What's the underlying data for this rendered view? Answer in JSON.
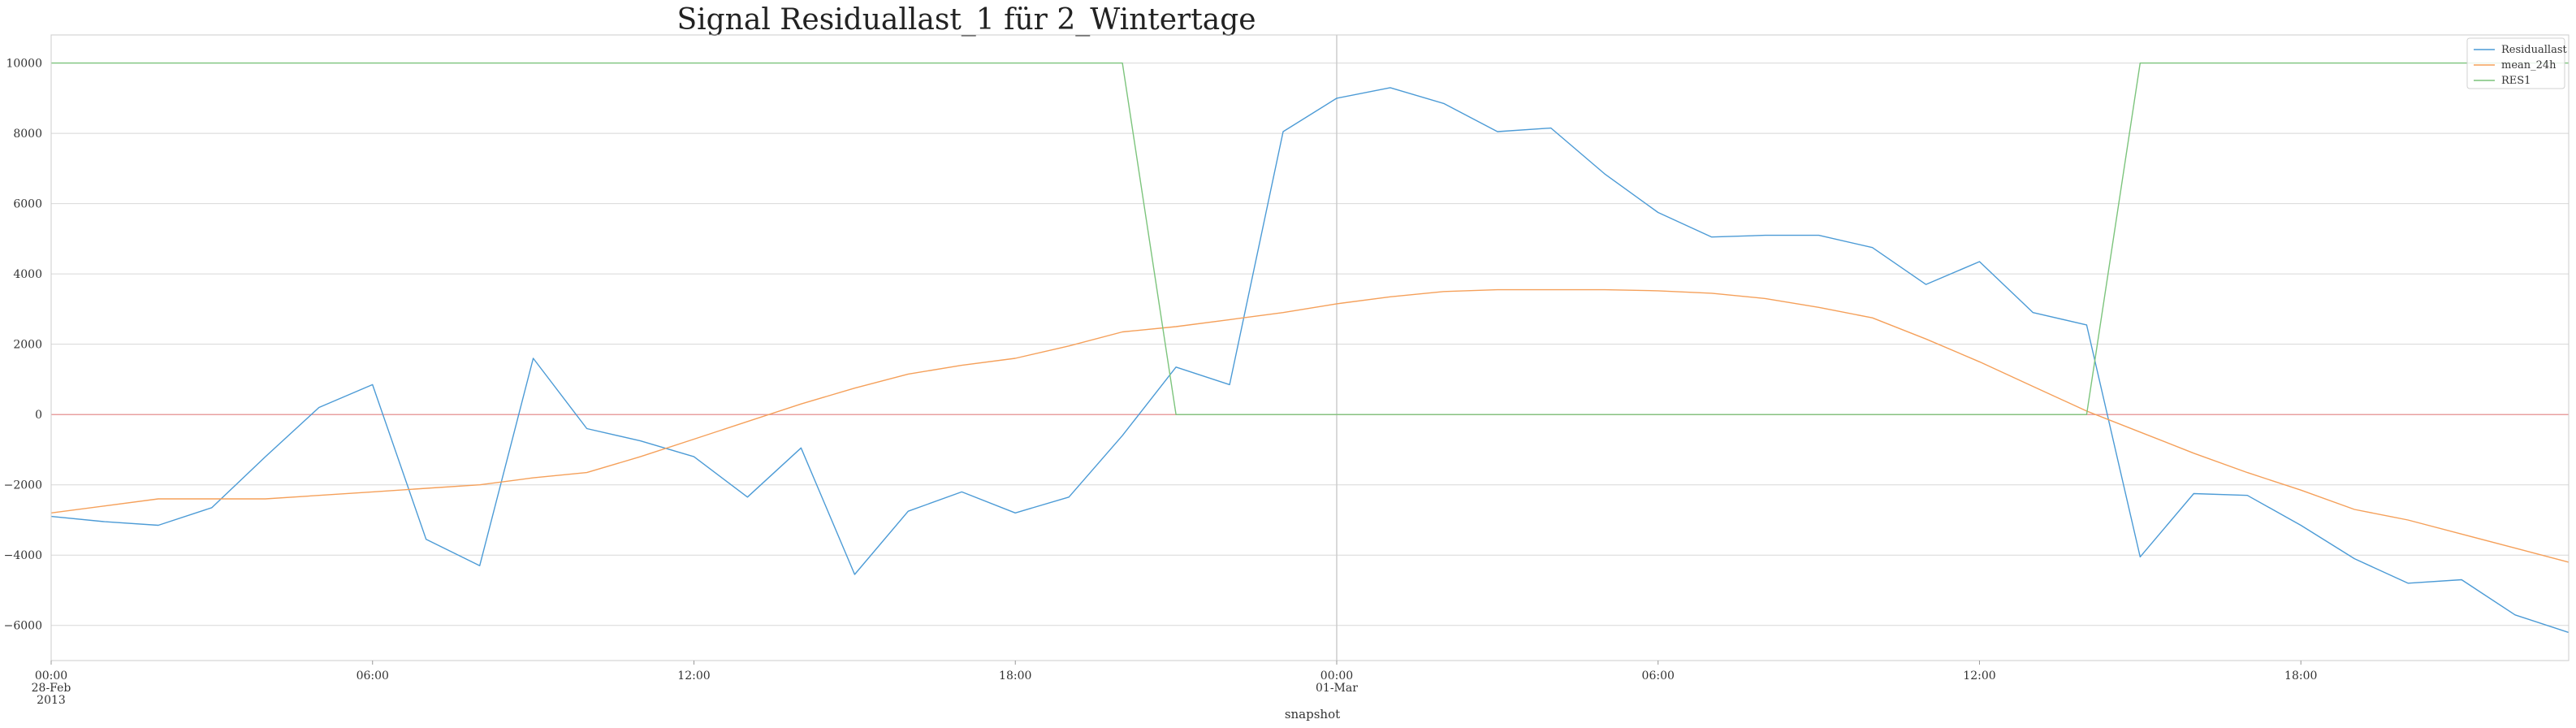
{
  "chart_data": {
    "type": "line",
    "title": "Signal Residuallast_1 für 2_Wintertage",
    "xlabel": "snapshot",
    "ylabel": "",
    "xlim": [
      0,
      47
    ],
    "ylim": [
      -7000,
      10800
    ],
    "grid": true,
    "legend_position": "top-right",
    "y_ticks": [
      -6000,
      -4000,
      -2000,
      0,
      2000,
      4000,
      6000,
      8000,
      10000
    ],
    "x_ticks": [
      {
        "x": 0,
        "lines": [
          "00:00",
          "28-Feb",
          "2013"
        ]
      },
      {
        "x": 6,
        "lines": [
          "06:00"
        ]
      },
      {
        "x": 12,
        "lines": [
          "12:00"
        ]
      },
      {
        "x": 18,
        "lines": [
          "18:00"
        ]
      },
      {
        "x": 24,
        "lines": [
          "00:00",
          "01-Mar"
        ]
      },
      {
        "x": 30,
        "lines": [
          "06:00"
        ]
      },
      {
        "x": 36,
        "lines": [
          "12:00"
        ]
      },
      {
        "x": 42,
        "lines": [
          "18:00"
        ]
      }
    ],
    "hlines": [
      {
        "y": 0,
        "color": "#e8a0a0"
      }
    ],
    "vlines": [
      {
        "x": 24,
        "color": "#cccccc"
      }
    ],
    "x": [
      0,
      1,
      2,
      3,
      4,
      5,
      6,
      7,
      8,
      9,
      10,
      11,
      12,
      13,
      14,
      15,
      16,
      17,
      18,
      19,
      20,
      21,
      22,
      23,
      24,
      25,
      26,
      27,
      28,
      29,
      30,
      31,
      32,
      33,
      34,
      35,
      36,
      37,
      38,
      39,
      40,
      41,
      42,
      43,
      44,
      45,
      46,
      47
    ],
    "series": [
      {
        "name": "Residuallast",
        "color": "#4c9bd6",
        "values": [
          -2900,
          -3050,
          -3150,
          -2650,
          -1200,
          200,
          850,
          -3550,
          -4300,
          1600,
          -400,
          -750,
          -1200,
          -2350,
          -950,
          -4550,
          -2750,
          -2200,
          -2800,
          -2350,
          -600,
          1350,
          850,
          8050,
          9000,
          9300,
          8850,
          8050,
          8150,
          6850,
          5750,
          5050,
          5100,
          5100,
          4750,
          3700,
          4350,
          2900,
          2550,
          -4050,
          -2250,
          -2300,
          -3150,
          -4100,
          -4800,
          -4700,
          -5700,
          -6200
        ]
      },
      {
        "name": "mean_24h",
        "color": "#f5a05a",
        "values": [
          -2800,
          -2600,
          -2400,
          -2400,
          -2400,
          -2300,
          -2200,
          -2100,
          -2000,
          -1800,
          -1650,
          -1200,
          -700,
          -200,
          300,
          750,
          1150,
          1400,
          1600,
          1950,
          2350,
          2500,
          2700,
          2900,
          3150,
          3350,
          3500,
          3550,
          3550,
          3550,
          3520,
          3450,
          3300,
          3050,
          2750,
          2150,
          1500,
          800,
          100,
          -500,
          -1100,
          -1650,
          -2150,
          -2700,
          -3000,
          -3400,
          -3800,
          -4200
        ]
      },
      {
        "name": "RES1",
        "color": "#7cc47c",
        "values": [
          10000,
          10000,
          10000,
          10000,
          10000,
          10000,
          10000,
          10000,
          10000,
          10000,
          10000,
          10000,
          10000,
          10000,
          10000,
          10000,
          10000,
          10000,
          10000,
          10000,
          10000,
          0,
          0,
          0,
          0,
          0,
          0,
          0,
          0,
          0,
          0,
          0,
          0,
          0,
          0,
          0,
          0,
          0,
          0,
          10000,
          10000,
          10000,
          10000,
          10000,
          10000,
          10000,
          10000,
          10000
        ]
      }
    ]
  }
}
